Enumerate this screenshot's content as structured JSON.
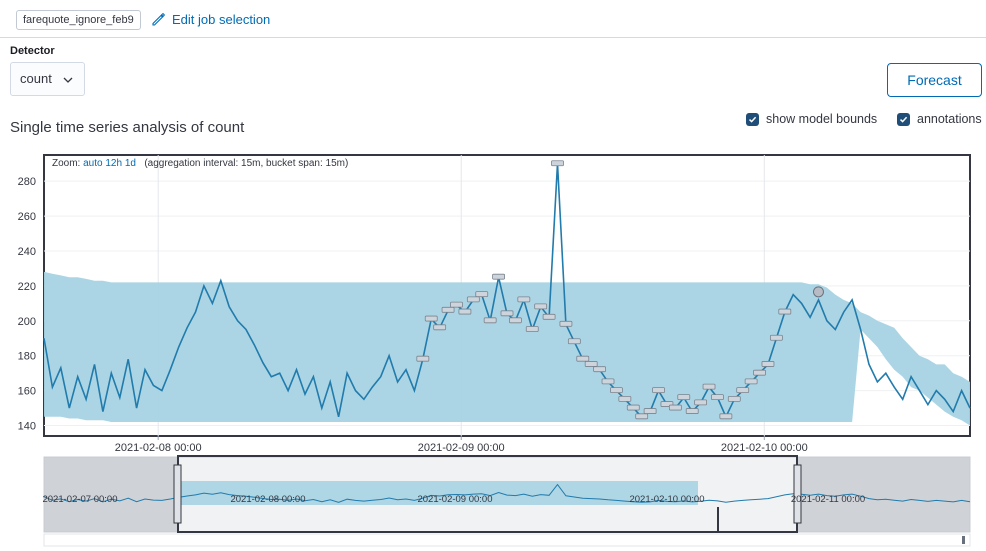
{
  "job": {
    "id": "farequote_ignore_feb9",
    "edit_label": "Edit job selection"
  },
  "detector": {
    "label": "Detector",
    "value": "count"
  },
  "forecast_label": "Forecast",
  "title": "Single time series analysis of count",
  "toggles": {
    "model_bounds": "show model bounds",
    "annotations": "annotations"
  },
  "zoom": {
    "label": "Zoom:",
    "options": [
      "auto",
      "12h",
      "1d"
    ],
    "info": "(aggregation interval: 15m, bucket span: 15m)"
  },
  "colors": {
    "series": "#217bac",
    "bounds": "#a6d3e3",
    "accent": "#006bb4"
  },
  "chart_data": {
    "type": "line",
    "y_ticks": [
      140,
      160,
      180,
      200,
      220,
      240,
      260,
      280
    ],
    "ylim": [
      134,
      295
    ],
    "x_tick_labels": [
      "2021-02-08 00:00",
      "2021-02-09 00:00",
      "2021-02-10 00:00"
    ],
    "context_tick_labels": [
      "2021-02-07 00:00",
      "2021-02-08 00:00",
      "2021-02-09 00:00",
      "2021-02-10 00:00",
      "2021-02-11 00:00"
    ],
    "x_hours": [
      0,
      2,
      4,
      6,
      8,
      10,
      12,
      14,
      16,
      18,
      20,
      22,
      24,
      26,
      28,
      30,
      32,
      34,
      36,
      38,
      40,
      42,
      44,
      46,
      48,
      50,
      52,
      54,
      56,
      58,
      60,
      62,
      64,
      66,
      68,
      70,
      72,
      74,
      76,
      78,
      80,
      82,
      84,
      86,
      88,
      90,
      92,
      94,
      96,
      98,
      100,
      102,
      104,
      106,
      108,
      110,
      112,
      114,
      116,
      118,
      120,
      122,
      124,
      126,
      128,
      130,
      132,
      134,
      136,
      138,
      140,
      142,
      144,
      146,
      148,
      150,
      152,
      154,
      156,
      158,
      160,
      162,
      164,
      166,
      168,
      170,
      172,
      174,
      176,
      178,
      180,
      182,
      184,
      186,
      188,
      190,
      192,
      194,
      196,
      198,
      200,
      202,
      204,
      206,
      208,
      210,
      212,
      214,
      216,
      218,
      220
    ],
    "values": [
      190,
      162,
      173,
      150,
      168,
      155,
      175,
      148,
      170,
      156,
      178,
      150,
      172,
      163,
      160,
      172,
      185,
      196,
      205,
      220,
      210,
      223,
      208,
      200,
      195,
      186,
      176,
      168,
      170,
      160,
      172,
      158,
      168,
      150,
      165,
      145,
      170,
      160,
      155,
      162,
      168,
      180,
      165,
      172,
      160,
      178,
      201,
      196,
      206,
      209,
      205,
      212,
      215,
      200,
      225,
      204,
      200,
      212,
      195,
      208,
      202,
      290,
      198,
      188,
      178,
      175,
      172,
      165,
      160,
      155,
      150,
      145,
      148,
      160,
      152,
      150,
      156,
      148,
      153,
      162,
      156,
      145,
      155,
      160,
      165,
      170,
      175,
      190,
      205,
      215,
      210,
      202,
      212,
      200,
      195,
      205,
      212,
      195,
      175,
      165,
      170,
      162,
      155,
      168,
      160,
      152,
      160,
      155,
      148,
      160,
      150
    ],
    "bounds_upper": [
      228,
      227,
      226,
      225,
      225,
      224,
      223,
      223,
      222,
      222,
      222,
      222,
      222,
      222,
      222,
      222,
      222,
      222,
      222,
      222,
      222,
      222,
      222,
      222,
      222,
      222,
      222,
      222,
      222,
      222,
      222,
      222,
      222,
      222,
      222,
      222,
      222,
      222,
      222,
      222,
      222,
      222,
      222,
      222,
      222,
      222,
      222,
      222,
      222,
      222,
      222,
      222,
      222,
      222,
      222,
      222,
      222,
      222,
      222,
      222,
      222,
      222,
      222,
      222,
      222,
      222,
      222,
      222,
      222,
      222,
      222,
      222,
      222,
      222,
      222,
      222,
      222,
      222,
      222,
      222,
      222,
      222,
      222,
      222,
      222,
      222,
      222,
      222,
      222,
      222,
      222,
      221,
      221,
      219,
      215,
      212,
      210,
      205,
      203,
      200,
      198,
      196,
      190,
      185,
      180,
      178,
      175,
      175,
      170,
      168,
      165
    ],
    "bounds_lower": [
      145,
      145,
      145,
      144,
      144,
      143,
      143,
      143,
      142,
      142,
      142,
      142,
      142,
      142,
      142,
      142,
      142,
      142,
      142,
      142,
      142,
      142,
      142,
      142,
      142,
      142,
      142,
      142,
      142,
      142,
      142,
      142,
      142,
      142,
      142,
      142,
      142,
      142,
      142,
      142,
      142,
      142,
      142,
      142,
      142,
      142,
      142,
      142,
      142,
      142,
      142,
      142,
      142,
      142,
      142,
      142,
      142,
      142,
      142,
      142,
      142,
      142,
      142,
      142,
      142,
      142,
      142,
      142,
      142,
      142,
      142,
      142,
      142,
      142,
      142,
      142,
      142,
      142,
      142,
      142,
      142,
      142,
      142,
      142,
      142,
      142,
      142,
      142,
      142,
      142,
      142,
      142,
      142,
      142,
      142,
      142,
      142,
      195,
      190,
      185,
      178,
      172,
      168,
      162,
      160,
      156,
      152,
      148,
      145,
      143,
      140
    ]
  }
}
